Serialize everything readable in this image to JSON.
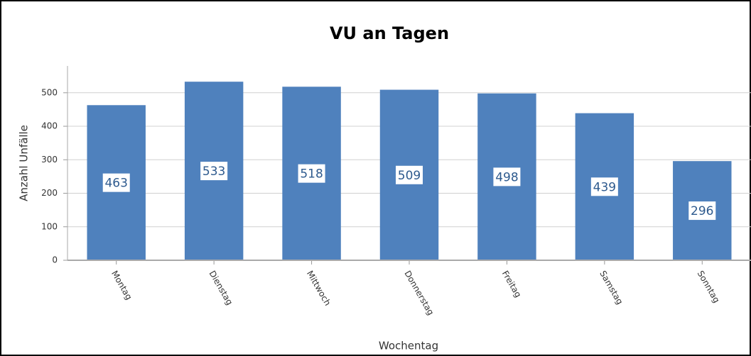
{
  "chart_data": {
    "type": "bar",
    "title": "VU an Tagen",
    "x_label": "Wochentag",
    "y_label": "Anzahl Unfälle",
    "categories": [
      "Montag",
      "Dienstag",
      "Mittwoch",
      "Donnerstag",
      "Freitag",
      "Samstag",
      "Sonntag"
    ],
    "values": [
      463,
      533,
      518,
      509,
      498,
      439,
      296
    ],
    "color": "#4f81bd",
    "ylim": [
      0,
      580
    ],
    "yticks": [
      0,
      100,
      200,
      300,
      400,
      500
    ],
    "grid": true
  }
}
